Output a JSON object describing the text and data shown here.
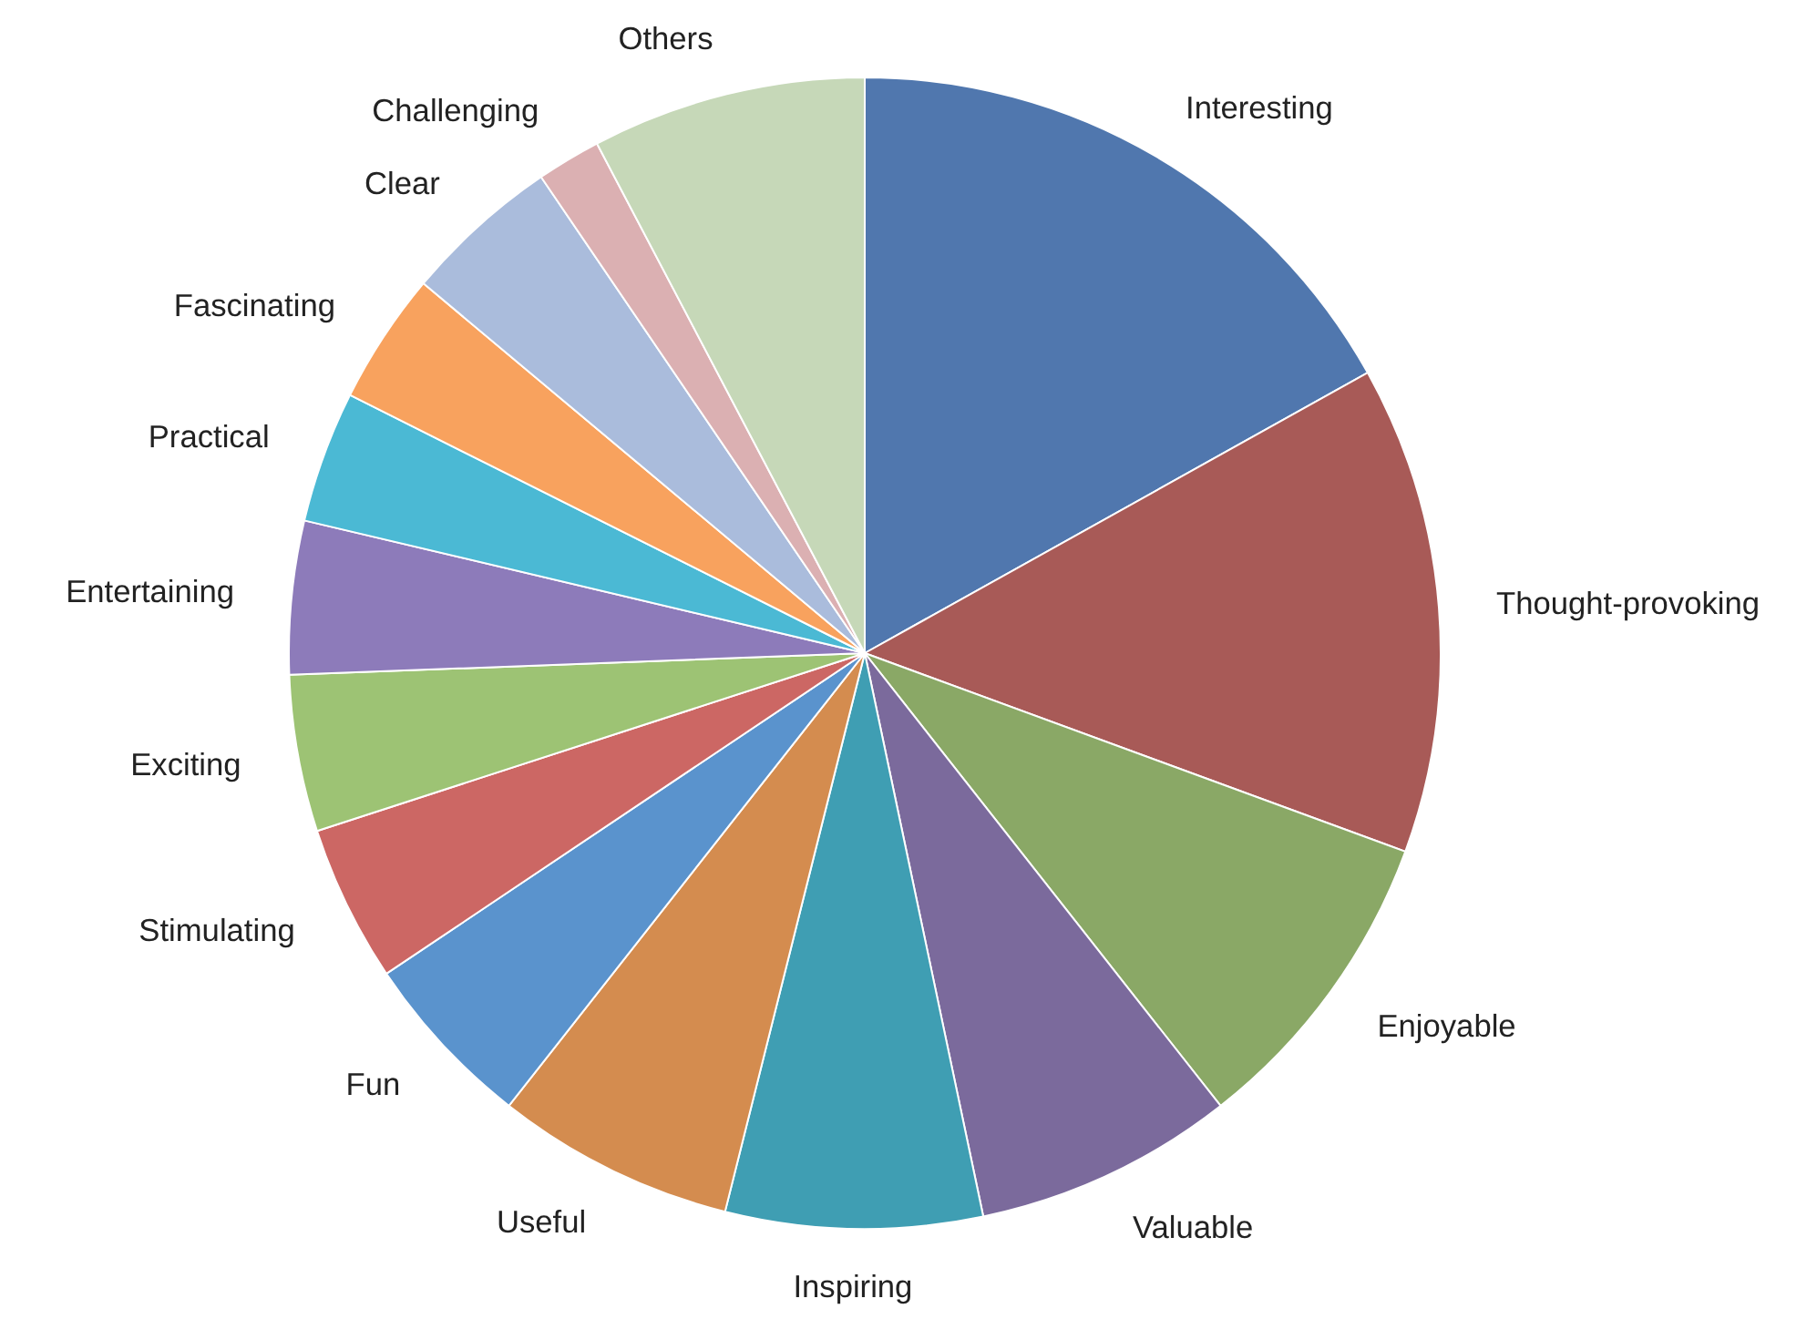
{
  "chart_data": {
    "type": "pie",
    "categories": [
      "Interesting",
      "Thought-provoking",
      "Enjoyable",
      "Valuable",
      "Inspiring",
      "Useful",
      "Fun",
      "Stimulating",
      "Exciting",
      "Entertaining",
      "Practical",
      "Fascinating",
      "Clear",
      "Challenging",
      "Others"
    ],
    "values": [
      16.9,
      13.7,
      8.8,
      7.3,
      7.2,
      6.7,
      5.0,
      4.4,
      4.4,
      4.3,
      3.7,
      3.7,
      4.4,
      1.8,
      7.7
    ],
    "colors": [
      "#5077ae",
      "#a85a57",
      "#8aa866",
      "#7b6a9c",
      "#3f9eb3",
      "#d48c4f",
      "#5a93cd",
      "#cc6764",
      "#9dc374",
      "#8d7bba",
      "#4bb9d4",
      "#f8a25e",
      "#aabcdc",
      "#dbb0b2",
      "#c6d8b8"
    ]
  }
}
